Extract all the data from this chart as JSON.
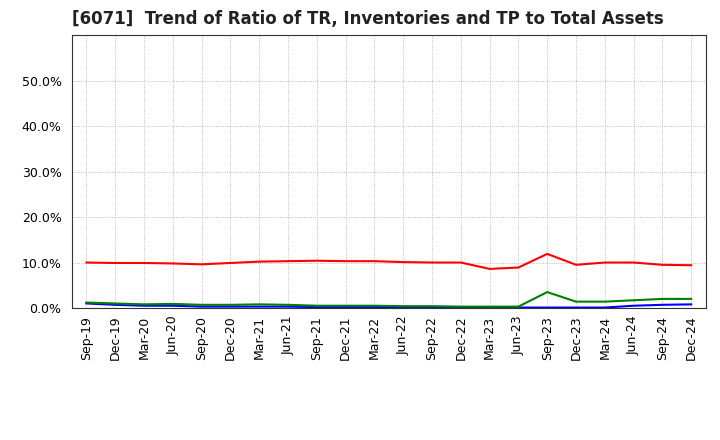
{
  "title": "[6071]  Trend of Ratio of TR, Inventories and TP to Total Assets",
  "x_labels": [
    "Sep-19",
    "Dec-19",
    "Mar-20",
    "Jun-20",
    "Sep-20",
    "Dec-20",
    "Mar-21",
    "Jun-21",
    "Sep-21",
    "Dec-21",
    "Mar-22",
    "Jun-22",
    "Sep-22",
    "Dec-22",
    "Mar-23",
    "Jun-23",
    "Sep-23",
    "Dec-23",
    "Mar-24",
    "Jun-24",
    "Sep-24",
    "Dec-24"
  ],
  "trade_receivables": [
    0.1,
    0.099,
    0.099,
    0.098,
    0.096,
    0.099,
    0.102,
    0.103,
    0.104,
    0.103,
    0.103,
    0.101,
    0.1,
    0.1,
    0.086,
    0.089,
    0.119,
    0.095,
    0.1,
    0.1,
    0.095,
    0.094
  ],
  "inventories": [
    0.01,
    0.007,
    0.005,
    0.005,
    0.003,
    0.003,
    0.003,
    0.003,
    0.002,
    0.002,
    0.002,
    0.002,
    0.002,
    0.002,
    0.001,
    0.001,
    0.001,
    0.001,
    0.001,
    0.005,
    0.007,
    0.008
  ],
  "trade_payables": [
    0.012,
    0.01,
    0.008,
    0.009,
    0.007,
    0.007,
    0.008,
    0.007,
    0.005,
    0.005,
    0.005,
    0.004,
    0.004,
    0.003,
    0.003,
    0.003,
    0.035,
    0.014,
    0.014,
    0.017,
    0.02,
    0.02
  ],
  "tr_color": "#ff0000",
  "inv_color": "#0000ff",
  "tp_color": "#008000",
  "ylim": [
    0.0,
    0.6
  ],
  "yticks": [
    0.0,
    0.1,
    0.2,
    0.3,
    0.4,
    0.5
  ],
  "ytick_labels": [
    "0.0%",
    "10.0%",
    "20.0%",
    "30.0%",
    "40.0%",
    "50.0%"
  ],
  "bg_color": "#ffffff",
  "plot_bg_color": "#ffffff",
  "grid_color": "#aaaaaa",
  "title_fontsize": 12,
  "legend_fontsize": 9.5,
  "tick_fontsize": 9
}
